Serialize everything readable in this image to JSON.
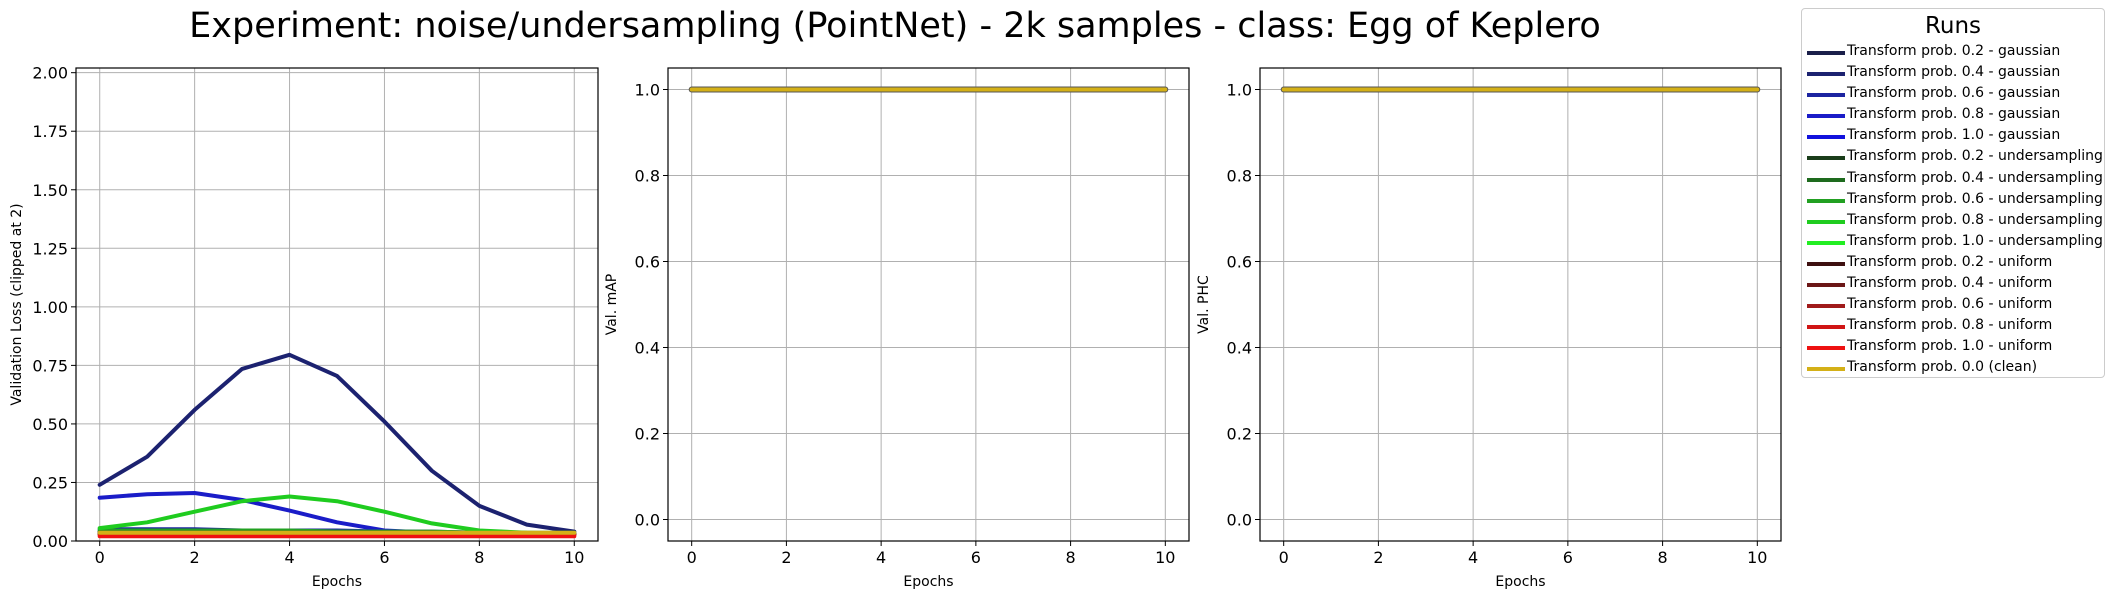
{
  "suptitle": "Experiment: noise/undersampling (PointNet) - 2k samples - class: Egg of Keplero",
  "legend": {
    "title": "Runs",
    "entries": [
      {
        "label": "Transform prob. 0.2 - gaussian",
        "color": "#1a1f4a"
      },
      {
        "label": "Transform prob. 0.4 - gaussian",
        "color": "#1c2270"
      },
      {
        "label": "Transform prob. 0.6 - gaussian",
        "color": "#1c24a0"
      },
      {
        "label": "Transform prob. 0.8 - gaussian",
        "color": "#1a1cc8"
      },
      {
        "label": "Transform prob. 1.0 - gaussian",
        "color": "#1111dd"
      },
      {
        "label": "Transform prob. 0.2 - undersampling",
        "color": "#1a3d1a"
      },
      {
        "label": "Transform prob. 0.4 - undersampling",
        "color": "#1e6b1e"
      },
      {
        "label": "Transform prob. 0.6 - undersampling",
        "color": "#22a022"
      },
      {
        "label": "Transform prob. 0.8 - undersampling",
        "color": "#1fcc1f"
      },
      {
        "label": "Transform prob. 1.0 - undersampling",
        "color": "#22ee22"
      },
      {
        "label": "Transform prob. 0.2 - uniform",
        "color": "#3d1010"
      },
      {
        "label": "Transform prob. 0.4 - uniform",
        "color": "#6b1616"
      },
      {
        "label": "Transform prob. 0.6 - uniform",
        "color": "#a01a1a"
      },
      {
        "label": "Transform prob. 0.8 - uniform",
        "color": "#d01515"
      },
      {
        "label": "Transform prob. 1.0 - uniform",
        "color": "#ee1111"
      },
      {
        "label": "Transform prob. 0.0 (clean)",
        "color": "#d4b017"
      }
    ]
  },
  "chart_data": [
    {
      "type": "line",
      "xlabel": "Epochs",
      "ylabel": "Validation Loss (clipped at 2)",
      "xlim": [
        -0.5,
        10.5
      ],
      "ylim": [
        0,
        2.02
      ],
      "xticks": [
        0,
        2,
        4,
        6,
        8,
        10
      ],
      "xtick_labels": [
        "0",
        "2",
        "4",
        "6",
        "8",
        "10"
      ],
      "yticks": [
        0,
        0.25,
        0.5,
        0.75,
        1.0,
        1.25,
        1.5,
        1.75,
        2.0
      ],
      "ytick_labels": [
        "0.00",
        "0.25",
        "0.50",
        "0.75",
        "1.00",
        "1.25",
        "1.50",
        "1.75",
        "2.00"
      ],
      "grid": true,
      "x": [
        0,
        1,
        2,
        3,
        4,
        5,
        6,
        7,
        8,
        9,
        10
      ],
      "series": [
        {
          "name": "Transform prob. 0.2 - gaussian",
          "color": "#1a1f4a",
          "values": [
            0.04,
            0.04,
            0.04,
            0.035,
            0.03,
            0.03,
            0.03,
            0.03,
            0.03,
            0.03,
            0.03
          ]
        },
        {
          "name": "Transform prob. 0.4 - gaussian",
          "color": "#1c2270",
          "values": [
            0.24,
            0.36,
            0.56,
            0.735,
            0.795,
            0.705,
            0.51,
            0.3,
            0.15,
            0.07,
            0.04
          ]
        },
        {
          "name": "Transform prob. 0.6 - gaussian",
          "color": "#1c24a0",
          "values": [
            0.05,
            0.05,
            0.05,
            0.045,
            0.045,
            0.045,
            0.04,
            0.04,
            0.035,
            0.03,
            0.03
          ]
        },
        {
          "name": "Transform prob. 0.8 - gaussian",
          "color": "#1a1cc8",
          "values": [
            0.185,
            0.2,
            0.205,
            0.175,
            0.13,
            0.08,
            0.045,
            0.035,
            0.03,
            0.03,
            0.03
          ]
        },
        {
          "name": "Transform prob. 1.0 - gaussian",
          "color": "#1111dd",
          "values": [
            0.035,
            0.035,
            0.035,
            0.035,
            0.035,
            0.035,
            0.035,
            0.035,
            0.03,
            0.03,
            0.03
          ]
        },
        {
          "name": "Transform prob. 0.2 - undersampling",
          "color": "#1a3d1a",
          "values": [
            0.04,
            0.04,
            0.035,
            0.035,
            0.035,
            0.035,
            0.035,
            0.03,
            0.03,
            0.03,
            0.03
          ]
        },
        {
          "name": "Transform prob. 0.4 - undersampling",
          "color": "#1e6b1e",
          "values": [
            0.035,
            0.035,
            0.035,
            0.035,
            0.035,
            0.035,
            0.035,
            0.035,
            0.03,
            0.03,
            0.03
          ]
        },
        {
          "name": "Transform prob. 0.6 - undersampling",
          "color": "#22a022",
          "values": [
            0.045,
            0.045,
            0.045,
            0.045,
            0.045,
            0.04,
            0.04,
            0.04,
            0.035,
            0.035,
            0.035
          ]
        },
        {
          "name": "Transform prob. 0.8 - undersampling",
          "color": "#1fcc1f",
          "values": [
            0.055,
            0.08,
            0.125,
            0.17,
            0.19,
            0.17,
            0.125,
            0.075,
            0.045,
            0.035,
            0.03
          ]
        },
        {
          "name": "Transform prob. 1.0 - undersampling",
          "color": "#22ee22",
          "values": [
            0.03,
            0.03,
            0.03,
            0.03,
            0.03,
            0.03,
            0.03,
            0.03,
            0.03,
            0.03,
            0.03
          ]
        },
        {
          "name": "Transform prob. 0.2 - uniform",
          "color": "#3d1010",
          "values": [
            0.03,
            0.03,
            0.03,
            0.03,
            0.03,
            0.03,
            0.03,
            0.03,
            0.03,
            0.03,
            0.03
          ]
        },
        {
          "name": "Transform prob. 0.4 - uniform",
          "color": "#6b1616",
          "values": [
            0.035,
            0.035,
            0.035,
            0.035,
            0.035,
            0.035,
            0.035,
            0.035,
            0.03,
            0.03,
            0.03
          ]
        },
        {
          "name": "Transform prob. 0.6 - uniform",
          "color": "#a01a1a",
          "values": [
            0.03,
            0.03,
            0.03,
            0.03,
            0.03,
            0.03,
            0.03,
            0.03,
            0.03,
            0.03,
            0.03
          ]
        },
        {
          "name": "Transform prob. 0.8 - uniform",
          "color": "#d01515",
          "values": [
            0.025,
            0.025,
            0.025,
            0.025,
            0.025,
            0.025,
            0.025,
            0.025,
            0.025,
            0.025,
            0.025
          ]
        },
        {
          "name": "Transform prob. 1.0 - uniform",
          "color": "#ee1111",
          "values": [
            0.02,
            0.02,
            0.02,
            0.02,
            0.02,
            0.02,
            0.02,
            0.02,
            0.02,
            0.02,
            0.02
          ]
        },
        {
          "name": "Transform prob. 0.0 (clean)",
          "color": "#d4b017",
          "values": [
            0.035,
            0.035,
            0.035,
            0.035,
            0.035,
            0.035,
            0.035,
            0.035,
            0.035,
            0.035,
            0.035
          ]
        }
      ]
    },
    {
      "type": "line",
      "xlabel": "Epochs",
      "ylabel": "Val. mAP",
      "xlim": [
        -0.5,
        10.5
      ],
      "ylim": [
        -0.05,
        1.05
      ],
      "xticks": [
        0,
        2,
        4,
        6,
        8,
        10
      ],
      "xtick_labels": [
        "0",
        "2",
        "4",
        "6",
        "8",
        "10"
      ],
      "yticks": [
        0,
        0.2,
        0.4,
        0.6,
        0.8,
        1.0
      ],
      "ytick_labels": [
        "0.0",
        "0.2",
        "0.4",
        "0.6",
        "0.8",
        "1.0"
      ],
      "grid": true,
      "x": [
        0,
        1,
        2,
        3,
        4,
        5,
        6,
        7,
        8,
        9,
        10
      ],
      "series": [
        {
          "name": "Transform prob. 0.2 - gaussian",
          "color": "#1a1f4a",
          "values": [
            1,
            1,
            1,
            1,
            1,
            1,
            1,
            1,
            1,
            1,
            1
          ]
        },
        {
          "name": "Transform prob. 0.4 - gaussian",
          "color": "#1c2270",
          "values": [
            1,
            1,
            1,
            1,
            1,
            1,
            1,
            1,
            1,
            1,
            1
          ]
        },
        {
          "name": "Transform prob. 0.6 - gaussian",
          "color": "#1c24a0",
          "values": [
            1,
            1,
            1,
            1,
            1,
            1,
            1,
            1,
            1,
            1,
            1
          ]
        },
        {
          "name": "Transform prob. 0.8 - gaussian",
          "color": "#1a1cc8",
          "values": [
            1,
            1,
            1,
            1,
            1,
            1,
            1,
            1,
            1,
            1,
            1
          ]
        },
        {
          "name": "Transform prob. 1.0 - gaussian",
          "color": "#1111dd",
          "values": [
            1,
            1,
            1,
            1,
            1,
            1,
            1,
            1,
            1,
            1,
            1
          ]
        },
        {
          "name": "Transform prob. 0.2 - undersampling",
          "color": "#1a3d1a",
          "values": [
            1,
            1,
            1,
            1,
            1,
            1,
            1,
            1,
            1,
            1,
            1
          ]
        },
        {
          "name": "Transform prob. 0.4 - undersampling",
          "color": "#1e6b1e",
          "values": [
            1,
            1,
            1,
            1,
            1,
            1,
            1,
            1,
            1,
            1,
            1
          ]
        },
        {
          "name": "Transform prob. 0.6 - undersampling",
          "color": "#22a022",
          "values": [
            1,
            1,
            1,
            1,
            1,
            1,
            1,
            1,
            1,
            1,
            1
          ]
        },
        {
          "name": "Transform prob. 0.8 - undersampling",
          "color": "#1fcc1f",
          "values": [
            1,
            1,
            1,
            1,
            1,
            1,
            1,
            1,
            1,
            1,
            1
          ]
        },
        {
          "name": "Transform prob. 1.0 - undersampling",
          "color": "#22ee22",
          "values": [
            1,
            1,
            1,
            1,
            1,
            1,
            1,
            1,
            1,
            1,
            1
          ]
        },
        {
          "name": "Transform prob. 0.2 - uniform",
          "color": "#3d1010",
          "values": [
            1,
            1,
            1,
            1,
            1,
            1,
            1,
            1,
            1,
            1,
            1
          ]
        },
        {
          "name": "Transform prob. 0.4 - uniform",
          "color": "#6b1616",
          "values": [
            1,
            1,
            1,
            1,
            1,
            1,
            1,
            1,
            1,
            1,
            1
          ]
        },
        {
          "name": "Transform prob. 0.6 - uniform",
          "color": "#a01a1a",
          "values": [
            1,
            1,
            1,
            1,
            1,
            1,
            1,
            1,
            1,
            1,
            1
          ]
        },
        {
          "name": "Transform prob. 0.8 - uniform",
          "color": "#d01515",
          "values": [
            1,
            1,
            1,
            1,
            1,
            1,
            1,
            1,
            1,
            1,
            1
          ]
        },
        {
          "name": "Transform prob. 1.0 - uniform",
          "color": "#ee1111",
          "values": [
            1,
            1,
            1,
            1,
            1,
            1,
            1,
            1,
            1,
            1,
            1
          ]
        },
        {
          "name": "Transform prob. 0.0 (clean)",
          "color": "#d4b017",
          "values": [
            1,
            1,
            1,
            1,
            1,
            1,
            1,
            1,
            1,
            1,
            1
          ]
        }
      ]
    },
    {
      "type": "line",
      "xlabel": "Epochs",
      "ylabel": "Val. PHC",
      "xlim": [
        -0.5,
        10.5
      ],
      "ylim": [
        -0.05,
        1.05
      ],
      "xticks": [
        0,
        2,
        4,
        6,
        8,
        10
      ],
      "xtick_labels": [
        "0",
        "2",
        "4",
        "6",
        "8",
        "10"
      ],
      "yticks": [
        0,
        0.2,
        0.4,
        0.6,
        0.8,
        1.0
      ],
      "ytick_labels": [
        "0.0",
        "0.2",
        "0.4",
        "0.6",
        "0.8",
        "1.0"
      ],
      "grid": true,
      "x": [
        0,
        1,
        2,
        3,
        4,
        5,
        6,
        7,
        8,
        9,
        10
      ],
      "series": [
        {
          "name": "Transform prob. 0.2 - gaussian",
          "color": "#1a1f4a",
          "values": [
            1,
            1,
            1,
            1,
            1,
            1,
            1,
            1,
            1,
            1,
            1
          ]
        },
        {
          "name": "Transform prob. 0.4 - gaussian",
          "color": "#1c2270",
          "values": [
            1,
            1,
            1,
            1,
            1,
            1,
            1,
            1,
            1,
            1,
            1
          ]
        },
        {
          "name": "Transform prob. 0.6 - gaussian",
          "color": "#1c24a0",
          "values": [
            1,
            1,
            1,
            1,
            1,
            1,
            1,
            1,
            1,
            1,
            1
          ]
        },
        {
          "name": "Transform prob. 0.8 - gaussian",
          "color": "#1a1cc8",
          "values": [
            1,
            1,
            1,
            1,
            1,
            1,
            1,
            1,
            1,
            1,
            1
          ]
        },
        {
          "name": "Transform prob. 1.0 - gaussian",
          "color": "#1111dd",
          "values": [
            1,
            1,
            1,
            1,
            1,
            1,
            1,
            1,
            1,
            1,
            1
          ]
        },
        {
          "name": "Transform prob. 0.2 - undersampling",
          "color": "#1a3d1a",
          "values": [
            1,
            1,
            1,
            1,
            1,
            1,
            1,
            1,
            1,
            1,
            1
          ]
        },
        {
          "name": "Transform prob. 0.4 - undersampling",
          "color": "#1e6b1e",
          "values": [
            1,
            1,
            1,
            1,
            1,
            1,
            1,
            1,
            1,
            1,
            1
          ]
        },
        {
          "name": "Transform prob. 0.6 - undersampling",
          "color": "#22a022",
          "values": [
            1,
            1,
            1,
            1,
            1,
            1,
            1,
            1,
            1,
            1,
            1
          ]
        },
        {
          "name": "Transform prob. 0.8 - undersampling",
          "color": "#1fcc1f",
          "values": [
            1,
            1,
            1,
            1,
            1,
            1,
            1,
            1,
            1,
            1,
            1
          ]
        },
        {
          "name": "Transform prob. 1.0 - undersampling",
          "color": "#22ee22",
          "values": [
            1,
            1,
            1,
            1,
            1,
            1,
            1,
            1,
            1,
            1,
            1
          ]
        },
        {
          "name": "Transform prob. 0.2 - uniform",
          "color": "#3d1010",
          "values": [
            1,
            1,
            1,
            1,
            1,
            1,
            1,
            1,
            1,
            1,
            1
          ]
        },
        {
          "name": "Transform prob. 0.4 - uniform",
          "color": "#6b1616",
          "values": [
            1,
            1,
            1,
            1,
            1,
            1,
            1,
            1,
            1,
            1,
            1
          ]
        },
        {
          "name": "Transform prob. 0.6 - uniform",
          "color": "#a01a1a",
          "values": [
            1,
            1,
            1,
            1,
            1,
            1,
            1,
            1,
            1,
            1,
            1
          ]
        },
        {
          "name": "Transform prob. 0.8 - uniform",
          "color": "#d01515",
          "values": [
            1,
            1,
            1,
            1,
            1,
            1,
            1,
            1,
            1,
            1,
            1
          ]
        },
        {
          "name": "Transform prob. 1.0 - uniform",
          "color": "#ee1111",
          "values": [
            1,
            1,
            1,
            1,
            1,
            1,
            1,
            1,
            1,
            1,
            1
          ]
        },
        {
          "name": "Transform prob. 0.0 (clean)",
          "color": "#d4b017",
          "values": [
            1,
            1,
            1,
            1,
            1,
            1,
            1,
            1,
            1,
            1,
            1
          ]
        }
      ]
    }
  ]
}
